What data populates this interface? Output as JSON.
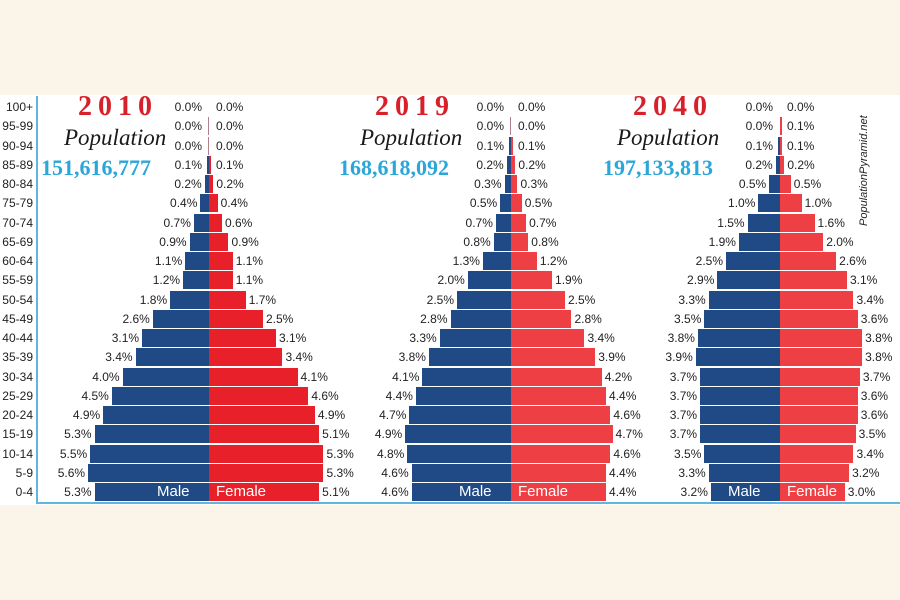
{
  "chart_data": {
    "type": "bar",
    "subtype": "population-pyramid",
    "categories": [
      "100+",
      "95-99",
      "90-94",
      "85-89",
      "80-84",
      "75-79",
      "70-74",
      "65-69",
      "60-64",
      "55-59",
      "50-54",
      "45-49",
      "40-44",
      "35-39",
      "30-34",
      "25-29",
      "20-24",
      "15-19",
      "10-14",
      "5-9",
      "0-4"
    ],
    "unit": "%",
    "legend": [
      "Male",
      "Female"
    ],
    "colors": {
      "male": "#1f4a86",
      "female_2010": "#e8202a",
      "female": "#ee4044",
      "axis": "#5fb7e0",
      "population": "#2aa6d8",
      "year": "#d7202a"
    },
    "credit": "PopulationPyramid.net",
    "population_label": "Population",
    "pyramids": [
      {
        "year": "2010",
        "population": "151,616,777",
        "male": [
          0.0,
          0.0,
          0.0,
          0.1,
          0.2,
          0.4,
          0.7,
          0.9,
          1.1,
          1.2,
          1.8,
          2.6,
          3.1,
          3.4,
          4.0,
          4.5,
          4.9,
          5.3,
          5.5,
          5.6,
          5.3
        ],
        "female": [
          0.0,
          0.0,
          0.0,
          0.1,
          0.2,
          0.4,
          0.6,
          0.9,
          1.1,
          1.1,
          1.7,
          2.5,
          3.1,
          3.4,
          4.1,
          4.6,
          4.9,
          5.1,
          5.3,
          5.3,
          5.1
        ]
      },
      {
        "year": "2019",
        "population": "168,618,092",
        "male": [
          0.0,
          0.0,
          0.1,
          0.2,
          0.3,
          0.5,
          0.7,
          0.8,
          1.3,
          2.0,
          2.5,
          2.8,
          3.3,
          3.8,
          4.1,
          4.4,
          4.7,
          4.9,
          4.8,
          4.6,
          4.6
        ],
        "female": [
          0.0,
          0.0,
          0.1,
          0.2,
          0.3,
          0.5,
          0.7,
          0.8,
          1.2,
          1.9,
          2.5,
          2.8,
          3.4,
          3.9,
          4.2,
          4.4,
          4.6,
          4.7,
          4.6,
          4.4,
          4.4
        ]
      },
      {
        "year": "2040",
        "population": "197,133,813",
        "male": [
          0.0,
          0.0,
          0.1,
          0.2,
          0.5,
          1.0,
          1.5,
          1.9,
          2.5,
          2.9,
          3.3,
          3.5,
          3.8,
          3.9,
          3.7,
          3.7,
          3.7,
          3.7,
          3.5,
          3.3,
          3.2
        ],
        "female": [
          0.0,
          0.1,
          0.1,
          0.2,
          0.5,
          1.0,
          1.6,
          2.0,
          2.6,
          3.1,
          3.4,
          3.6,
          3.8,
          3.8,
          3.7,
          3.6,
          3.6,
          3.5,
          3.4,
          3.2,
          3.0
        ]
      }
    ]
  }
}
